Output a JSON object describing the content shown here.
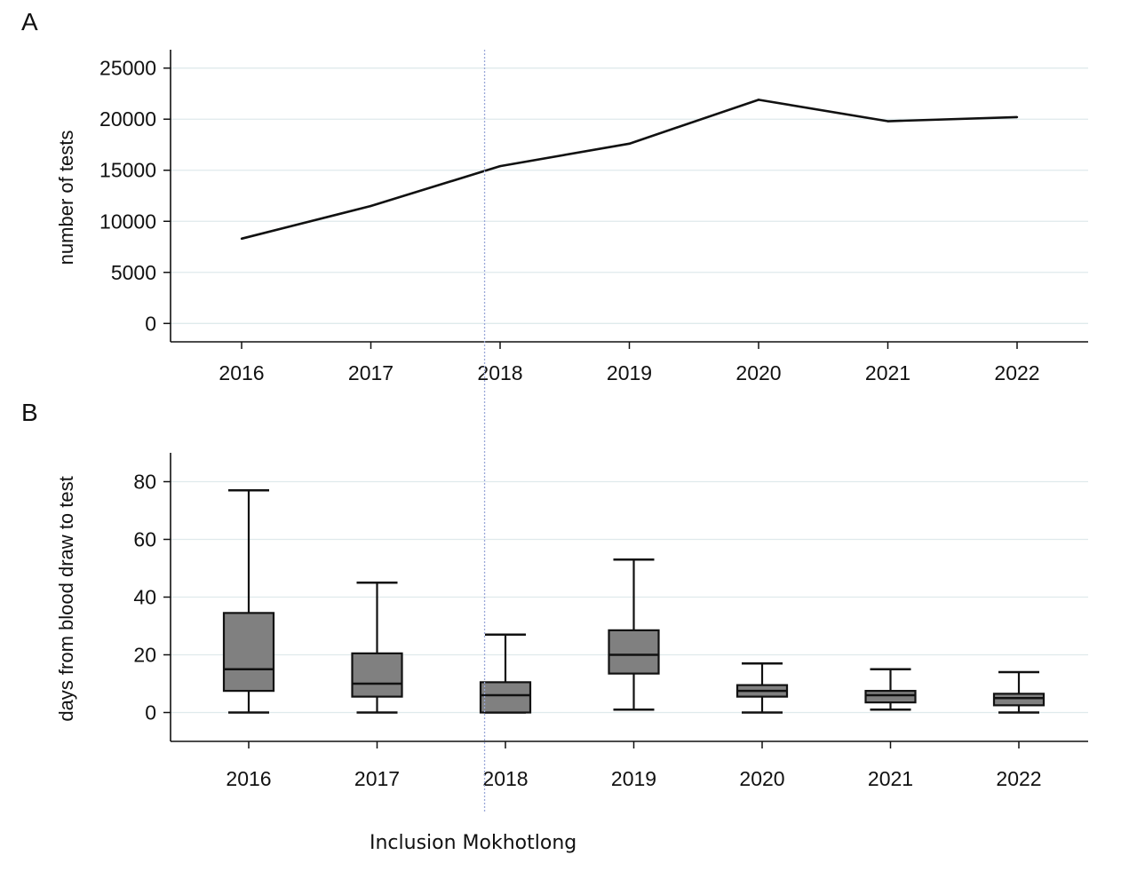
{
  "panel_labels": [
    "A",
    "B"
  ],
  "annotation": "Inclusion Mokhotlong",
  "colors": {
    "line": "#111111",
    "grid": "#dfeaec",
    "box_fill": "#808080",
    "ref_line": "#9aa8d8"
  },
  "chart_data": [
    {
      "type": "line",
      "panel": "A",
      "title": "",
      "xlabel": "",
      "ylabel": "number of tests",
      "x": [
        2016,
        2017,
        2018,
        2019,
        2020,
        2021,
        2022
      ],
      "xticks": [
        "2016",
        "2017",
        "2018",
        "2019",
        "2020",
        "2021",
        "2022"
      ],
      "yticks": [
        "0",
        "5000",
        "10000",
        "15000",
        "20000",
        "25000"
      ],
      "ylim": [
        -1800,
        26800
      ],
      "grid": true,
      "series": [
        {
          "values": [
            8300,
            11500,
            15400,
            17600,
            21900,
            19800,
            20200
          ]
        }
      ],
      "reference_line_x": 2017.88
    },
    {
      "type": "box",
      "panel": "B",
      "title": "",
      "xlabel": "",
      "ylabel": "days from blood draw to test",
      "categories": [
        "2016",
        "2017",
        "2018",
        "2019",
        "2020",
        "2021",
        "2022"
      ],
      "yticks": [
        "0",
        "20",
        "40",
        "60",
        "80"
      ],
      "ylim": [
        -10,
        90
      ],
      "grid": true,
      "boxes": [
        {
          "min": 0,
          "q1": 7.5,
          "median": 15,
          "q3": 34.5,
          "max": 77
        },
        {
          "min": 0,
          "q1": 5.5,
          "median": 10,
          "q3": 20.5,
          "max": 45
        },
        {
          "min": 0,
          "q1": 0,
          "median": 6,
          "q3": 10.5,
          "max": 27
        },
        {
          "min": 1,
          "q1": 13.5,
          "median": 20,
          "q3": 28.5,
          "max": 53
        },
        {
          "min": 0,
          "q1": 5.5,
          "median": 7.5,
          "q3": 9.5,
          "max": 17
        },
        {
          "min": 1,
          "q1": 3.5,
          "median": 6,
          "q3": 7.5,
          "max": 15
        },
        {
          "min": 0,
          "q1": 2.5,
          "median": 5,
          "q3": 6.5,
          "max": 14
        }
      ],
      "reference_line_x": 1.88
    }
  ]
}
